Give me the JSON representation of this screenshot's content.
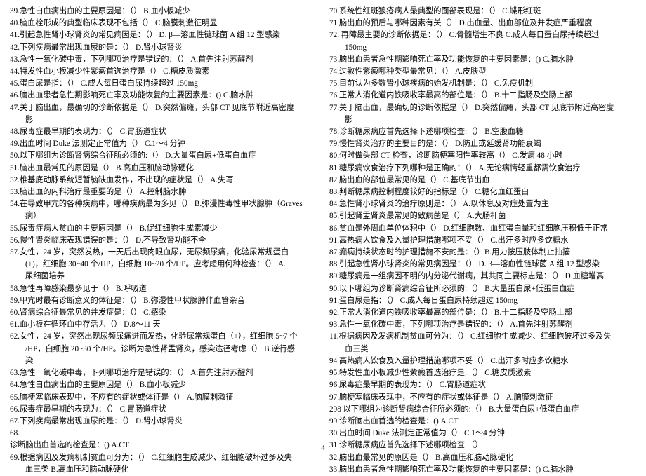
{
  "left": [
    {
      "t": "39.急性白血病出血的主要原因是：（） B.血小板减少"
    },
    {
      "t": "40.脑血栓形成的典型临床表现不包括（） C.脑膜刺激征明显"
    },
    {
      "t": "41.引起急性肾小球肾炎的常见病因是：（） D. β—溶血性链球菌 A 组 12 型感染"
    },
    {
      "t": "42.下列疾病最常出现血尿的是：（） D.肾小球肾炎"
    },
    {
      "t": "43.急性一氧化碳中毒，下列哪项治疗是错误的：（） A.首先注射苏醒剂"
    },
    {
      "t": "44.特发性血小板减少性紫癜首选治疗是（） C.糖皮质激素"
    },
    {
      "t": "45.蛋白尿是指：（） C.成人每日蛋白尿持续超过 150mg"
    },
    {
      "t": "46.脑出血患者急性期影响死亡率及功能恢复的主要因素是：() C.脑水肿"
    },
    {
      "t": "47.关于脑出血，最确切的诊断依据是（）   D.突然偏瘫，头部 CT 见底节附近高密度"
    },
    {
      "t": "影",
      "cls": "indent"
    },
    {
      "t": "48.尿毒症最早期的表现为：（） C.胃肠道症状"
    },
    {
      "t": "49.出血时间 Duke 法测定正常值为（） C.1～4 分钟"
    },
    {
      "t": "50.以下哪组为诊断肾病综合征所必须的:（） D.大量蛋白尿+低蛋白血症"
    },
    {
      "t": "51.脑出血最常见的原因是（）   B.高血压和脑动脉硬化"
    },
    {
      "t": "52.椎基底动脉系统短暂脑缺血发作，不出现的症状是（）   A.失写"
    },
    {
      "t": "53.脑出血的内科治疗最重要的是（）   A.控制脑水肿"
    },
    {
      "t": "54.在导致甲亢的各种疾病中，哪种疾病最为多见（） B.弥漫性毒性甲状腺肿（Graves"
    },
    {
      "t": "病）",
      "cls": "indent"
    },
    {
      "t": "55.尿毒症病人贫血的主要原因是（） B.促红细胞生成素减少"
    },
    {
      "t": "56.慢性肾炎临床表现错误的是：（） D.不导致肾功能不全"
    },
    {
      "t": "57.女性，24 岁，突然发热，一天后出现肉眼血尿，无尿频尿痛，化验尿常规蛋白"
    },
    {
      "t": "(+)，红细胞 30~40 个/HP，白细胞 10~20 个/HP。应考虑用何种检查：（） A.",
      "cls": "indent"
    },
    {
      "t": "尿细菌培养",
      "cls": "indent"
    },
    {
      "t": "58.急性再障感染最多见于（） B.呼吸道"
    },
    {
      "t": "59.甲亢时最有诊断意义的体征是：（） B.弥漫性甲状腺肿伴血管杂音"
    },
    {
      "t": "60.肾病综合征最常见的并发症是：（） C.感染"
    },
    {
      "t": "61.血小板在循环血中存活为（） D.8～11 天"
    },
    {
      "t": "62.女性，24 岁，突然出现尿频尿痛进而发热，化验尿常规蛋白（+），红细胞 5~7 个"
    },
    {
      "t": "/HP，白细胞 20~30 个/HP。诊断为急性肾盂肾炎，感染途径考虑（） B.逆行感",
      "cls": "indent"
    },
    {
      "t": "染",
      "cls": "indent"
    },
    {
      "t": "63.急性一氧化碳中毒，下列哪项治疗是错误的：（） A.首先注射苏醒剂"
    },
    {
      "t": "64.急性白血病出血的主要原因是（） B.血小板减少"
    },
    {
      "t": "65.脑梗塞临床表现中，不应有的症状或体征是（）   A.脑膜刺激征"
    },
    {
      "t": "66.尿毒症最早期的表现为：（） C.胃肠道症状"
    },
    {
      "t": "67.下列疾病最常出现血尿的是：（） D.肾小球肾炎"
    },
    {
      "t": "68."
    },
    {
      "t": "诊断脑出血首选的检查是：() A.CT"
    },
    {
      "t": "69.根据病因及发病机制贫血可分为：（） C.红细胞生成减少、红细胞破坏过多及失"
    },
    {
      "t": "血三类   B.高血压和脑动脉硬化",
      "cls": "indent"
    }
  ],
  "right": [
    {
      "t": "70.系统性红斑狼疮病人最典型的面部表现是：（） C.蝶形红斑"
    },
    {
      "t": "71.脑出血的预后与哪种因素有关（）   D.出血量、出血部位及并发症严重程度"
    },
    {
      "t": "72. 再障最主要的诊断依据是：（） C.骨髓增生不良 C.成人每日蛋白尿持续超过"
    },
    {
      "t": "150mg",
      "cls": "indent"
    },
    {
      "t": "73.脑出血患者急性期影响死亡率及功能恢复的主要因素是：() C.脑水肿"
    },
    {
      "t": "74.过敏性紫癜哪种类型最常见：（） A.皮肤型"
    },
    {
      "t": "75.目前认为多数肾小球疾病的始发机制是：（） C.免疫机制"
    },
    {
      "t": "76.正常人消化道内铁吸收率最高的部位是：（） B.十二指肠及空肠上部"
    },
    {
      "t": "77.关于脑出血，最确切的诊断依据是（）   D.突然偏瘫，头部 CT 见底节附近高密度"
    },
    {
      "t": "影",
      "cls": "indent"
    },
    {
      "t": "78.诊断糖尿病应首先选择下述哪项检查:（） B.空腹血糖"
    },
    {
      "t": "79.慢性肾炎治疗的主要目的是：（） D.防止或延缓肾功能衰竭"
    },
    {
      "t": "80.何时做头部 CT 检查，诊断脑梗塞阳性率较高（）   C.发病 48 小时"
    },
    {
      "t": "81.糖尿病饮食治疗下列哪种是正确的：（） A.无论病情轻重都需饮食治疗"
    },
    {
      "t": "82.脑出血的部位最常见的是（）   C.基底节出血"
    },
    {
      "t": "83.判断糖尿病控制程度较好的指标是（） C.糖化血红蛋白"
    },
    {
      "t": "84.急性肾小球肾炎的治疗原则是：（）   A.以休息及对症处置为主"
    },
    {
      "t": "85.引起肾盂肾炎最常见的致病菌是（） A.大肠杆菌"
    },
    {
      "t": "86.贫血是外周血单位体积中（） D.红细胞数、血红蛋白量和红细胞压积低于正常"
    },
    {
      "t": "91.高热病人饮食及入量护理措施哪项不妥（） C.出汗多时应多饮糖水"
    },
    {
      "t": "87.癫痫持续状态时的护理措施不安的是：（）B.用力按压肢体制止抽搐"
    },
    {
      "t": "88.引起急性肾小球肾炎的常见病因是：（） D. β—溶血性链球菌 A 组 12 型感染"
    },
    {
      "t": "89.糖尿病是一组病因不明的内分泌代谢病，其共同主要标志是：（） D.血糖增高"
    },
    {
      "t": "90.以下哪组为诊断肾病综合征所必须的:（）   B.大量蛋白尿+低蛋白血症"
    },
    {
      "t": "91.蛋白尿是指：（） C.成人每日蛋白尿持续超过 150mg"
    },
    {
      "t": "92.正常人消化道内铁吸收率最高的部位是：（） B.十二指肠及空肠上部"
    },
    {
      "t": "93.急性一氧化碳中毒，下列哪项治疗是错误的：（） A.首先注射苏醒剂"
    },
    {
      "t": "11.根据病因及发病机制贫血可分为：（） C.红细胞生成减少、红细胞破坏过多及失"
    },
    {
      "t": "血三类",
      "cls": "indent"
    },
    {
      "t": "94 高热病人饮食及入量护理措施哪项不妥（） C.出汗多时应多饮糖水"
    },
    {
      "t": "95.特发性血小板减少性紫癜首选治疗是:（） C.糖皮质激素"
    },
    {
      "t": "96.尿毒症最早期的表现为：（） C.胃肠道症状"
    },
    {
      "t": "97.脑梗塞临床表现中，不应有的症状或体征是（）   A.脑膜刺激征"
    },
    {
      "t": "298 以下哪组为诊断肾病综合征所必须的:（）   B.大量蛋白尿+低蛋白血症"
    },
    {
      "t": "99 诊断脑出血首选的检查是：() A.CT"
    },
    {
      "t": "30.出血时间 Duke 法测定正常值为（） C.1～4 分钟"
    },
    {
      "t": "31.诊断糖尿病应首先选择下述哪项检查:（）"
    },
    {
      "t": "32.脑出血最常见的原因是（）   B.高血压和脑动脉硬化"
    },
    {
      "t": "33.脑出血患者急性期影响死亡率及功能恢复的主要因素是：() C.脑水肿"
    }
  ],
  "footer": "4"
}
